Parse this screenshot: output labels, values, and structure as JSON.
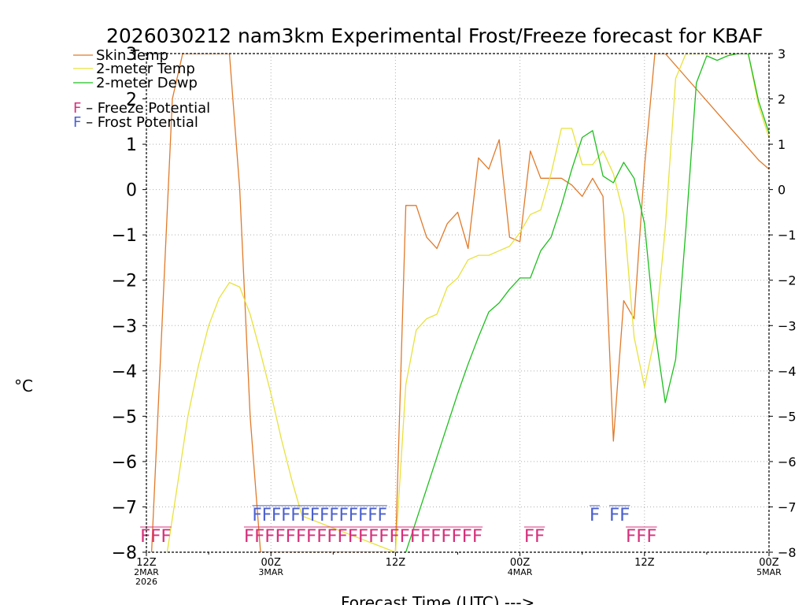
{
  "chart_data": {
    "type": "line",
    "title": "2026030212 nam3km Experimental Frost/Freeze forecast for KBAF",
    "xlabel": "Forecast Time (UTC) --->",
    "ylabel": "°C",
    "ylim": [
      -8,
      3
    ],
    "xlim": [
      0,
      60
    ],
    "yticks": [
      3,
      2,
      1,
      0,
      -1,
      -2,
      -3,
      -4,
      -5,
      -6,
      -7,
      -8
    ],
    "y_tick_labels": [
      "3",
      "2",
      "1",
      "0",
      "−1",
      "−2",
      "−3",
      "−4",
      "−5",
      "−6",
      "−7",
      "−8"
    ],
    "x_ticks": [
      {
        "x": 0,
        "lines": [
          "12Z",
          "2MAR",
          "2026"
        ]
      },
      {
        "x": 12,
        "lines": [
          "00Z",
          "3MAR"
        ]
      },
      {
        "x": 24,
        "lines": [
          "12Z"
        ]
      },
      {
        "x": 36,
        "lines": [
          "00Z",
          "4MAR"
        ]
      },
      {
        "x": 48,
        "lines": [
          "12Z"
        ]
      },
      {
        "x": 60,
        "lines": [
          "00Z",
          "5MAR"
        ]
      }
    ],
    "grid": true,
    "legend_position": "top-left",
    "series": [
      {
        "name": "Skin Temp",
        "color": "#e07a2a",
        "x": [
          0.5,
          1.5,
          2.5,
          3.5,
          8.0,
          9.0,
          10.0,
          11.0,
          24.0,
          25.0,
          26.0,
          27.0,
          28.0,
          29.0,
          30.0,
          31.0,
          32.0,
          33.0,
          34.0,
          35.0,
          36.0,
          37.0,
          38.0,
          39.0,
          40.0,
          41.0,
          42.0,
          43.0,
          44.0,
          45.0,
          46.0,
          47.0,
          48.0,
          49.0,
          50.0,
          59.0,
          60.0
        ],
        "y": [
          -8.0,
          -3.0,
          2.0,
          3.0,
          3.0,
          0.0,
          -5.0,
          -8.0,
          -8.0,
          -0.35,
          -0.35,
          -1.05,
          -1.3,
          -0.75,
          -0.5,
          -1.3,
          0.7,
          0.45,
          1.1,
          -1.05,
          -1.15,
          0.85,
          0.25,
          0.25,
          0.25,
          0.1,
          -0.15,
          0.25,
          -0.15,
          -5.55,
          -2.45,
          -2.85,
          0.5,
          3.0,
          3.0,
          0.65,
          0.45
        ]
      },
      {
        "name": "2-meter Temp",
        "color": "#e8e23c",
        "x": [
          2.0,
          3.0,
          4.0,
          5.0,
          6.0,
          7.0,
          8.0,
          9.0,
          10.0,
          11.0,
          12.0,
          13.0,
          14.0,
          15.0,
          24.0,
          25.0,
          26.0,
          27.0,
          28.0,
          29.0,
          30.0,
          31.0,
          32.0,
          33.0,
          34.0,
          35.0,
          36.0,
          37.0,
          38.0,
          39.0,
          40.0,
          41.0,
          42.0,
          43.0,
          44.0,
          45.0,
          46.0,
          47.0,
          48.0,
          49.0,
          50.0,
          51.0,
          52.0,
          53.0,
          54.0,
          55.0,
          56.0,
          57.0,
          58.0,
          59.0,
          60.0
        ],
        "y": [
          -8.0,
          -6.5,
          -5.0,
          -3.9,
          -3.0,
          -2.4,
          -2.05,
          -2.15,
          -2.75,
          -3.6,
          -4.5,
          -5.5,
          -6.4,
          -7.2,
          -8.0,
          -4.3,
          -3.1,
          -2.85,
          -2.75,
          -2.15,
          -1.95,
          -1.55,
          -1.45,
          -1.45,
          -1.35,
          -1.25,
          -0.95,
          -0.55,
          -0.45,
          0.35,
          1.35,
          1.35,
          0.55,
          0.55,
          0.85,
          0.35,
          -0.55,
          -3.25,
          -4.35,
          -3.25,
          -0.85,
          2.45,
          3.0,
          3.0,
          3.0,
          3.0,
          3.0,
          3.0,
          3.0,
          1.85,
          1.15
        ]
      },
      {
        "name": "2-meter Dewp",
        "color": "#1dbf1d",
        "x": [
          25.0,
          26.0,
          27.0,
          28.0,
          29.0,
          30.0,
          31.0,
          32.0,
          33.0,
          34.0,
          35.0,
          36.0,
          37.0,
          38.0,
          39.0,
          40.0,
          41.0,
          42.0,
          43.0,
          44.0,
          45.0,
          46.0,
          47.0,
          48.0,
          49.0,
          50.0,
          51.0,
          52.0,
          53.0,
          54.0,
          55.0,
          56.0,
          57.0,
          58.0,
          59.0,
          60.0
        ],
        "y": [
          -8.0,
          -7.3,
          -6.6,
          -5.9,
          -5.2,
          -4.5,
          -3.85,
          -3.25,
          -2.7,
          -2.5,
          -2.2,
          -1.95,
          -1.95,
          -1.35,
          -1.05,
          -0.35,
          0.45,
          1.15,
          1.3,
          0.3,
          0.15,
          0.6,
          0.25,
          -0.75,
          -3.1,
          -4.7,
          -3.75,
          -0.85,
          2.35,
          2.95,
          2.85,
          2.95,
          3.0,
          3.0,
          1.95,
          1.25
        ]
      }
    ],
    "frost_markers": {
      "name": "Frost Potential",
      "letter": "F",
      "color": "#4a5fcf",
      "level": -7.13,
      "runs": [
        {
          "from": 10.2,
          "to": 23.2,
          "text": "FFFFFFFFFFFFFF"
        },
        {
          "from": 42.7,
          "to": 43.7,
          "text": "F"
        },
        {
          "from": 44.6,
          "to": 46.6,
          "text": "FF"
        }
      ]
    },
    "freeze_markers": {
      "name": "Freeze Potential",
      "letter": "F",
      "color": "#d6307c",
      "level": -7.6,
      "runs": [
        {
          "from": -0.6,
          "to": 2.4,
          "text": "FFF"
        },
        {
          "from": 9.4,
          "to": 32.4,
          "text": "FFFFFFFFFFFFFFFFFFFFFFF"
        },
        {
          "from": 36.4,
          "to": 38.4,
          "text": "FF"
        },
        {
          "from": 46.2,
          "to": 49.2,
          "text": "FFF"
        }
      ]
    },
    "legend": {
      "skin_label": "Skin Temp",
      "temp_label": "2-meter Temp",
      "dewp_label": "2-meter Dewp",
      "freeze_letter": "F",
      "freeze_text": " – Freeze Potential",
      "frost_letter": "F",
      "frost_text": " – Frost Potential"
    }
  }
}
